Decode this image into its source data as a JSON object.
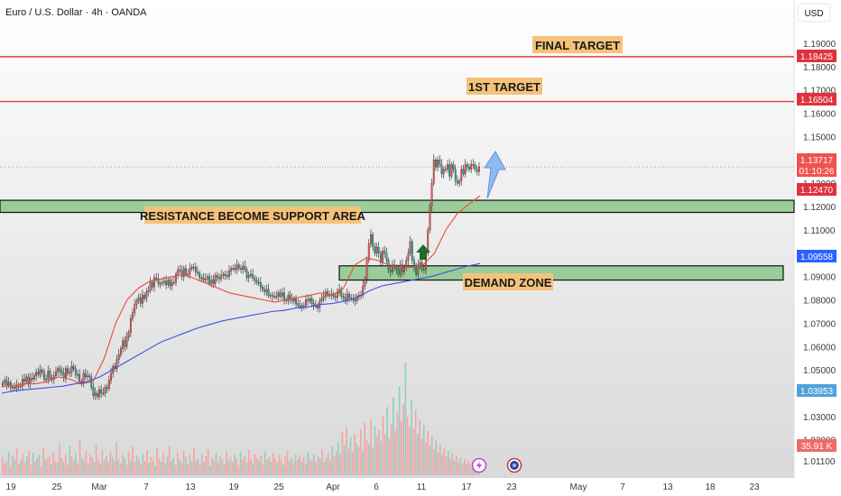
{
  "header": {
    "symbol_title": "Euro / U.S. Dollar · 4h · OANDA",
    "currency": "USD"
  },
  "colors": {
    "bull": "#ef5350",
    "bear": "#26a69a",
    "ema_fast": "#e74c3c",
    "ema_slow": "#3f51e0",
    "zone_fill": "#8fc98f",
    "target_line": "#e23c3c",
    "label_bg": "#f5c27a",
    "arrow_up_blue": "#7fb0f0",
    "arrow_up_green": "#1e6b2a"
  },
  "annotations": {
    "final_target": "FINAL TARGET",
    "first_target": "1ST TARGET",
    "resistance_support": "RESISTANCE BECOME SUPPORT AREA",
    "demand_zone": "DEMAND ZONE"
  },
  "price_badges": {
    "final_target": "1.18425",
    "first_target": "1.16504",
    "last_price": "1.13717",
    "countdown": "01:10:26",
    "ema_fast": "1.12470",
    "ema_slow": "1.09558",
    "volume_ref": "1.03953",
    "volume": "35.91 K"
  },
  "event_icons": [
    "lightning-icon",
    "globe-flag-icon"
  ],
  "chart_data": {
    "type": "candlestick",
    "title": "Euro / U.S. Dollar · 4h · OANDA",
    "ylim": [
      1.005,
      1.197
    ],
    "y_ticks": [
      "1.19000",
      "1.18000",
      "1.17000",
      "1.16000",
      "1.15000",
      "1.14000",
      "1.13000",
      "1.12000",
      "1.11000",
      "1.10000",
      "1.09000",
      "1.08000",
      "1.07000",
      "1.06000",
      "1.05000",
      "1.04000",
      "1.03000",
      "1.02000",
      "1.01100"
    ],
    "x_ticks": [
      "19",
      "25",
      "Mar",
      "7",
      "13",
      "19",
      "25",
      "Apr",
      "6",
      "11",
      "17",
      "23",
      "May",
      "7",
      "13",
      "18",
      "23"
    ],
    "levels": {
      "final_target": 1.18425,
      "first_target": 1.16504
    },
    "zones": {
      "resistance_support": [
        1.1175,
        1.1227
      ],
      "demand": [
        1.0885,
        1.0946
      ]
    },
    "series": [
      {
        "name": "",
        "kind": "price_close",
        "values": [
          1.0445,
          1.0455,
          1.0435,
          1.0445,
          1.0425,
          1.0425,
          1.042,
          1.0435,
          1.043,
          1.043,
          1.046,
          1.045,
          1.047,
          1.044,
          1.0465,
          1.046,
          1.0475,
          1.049,
          1.048,
          1.05,
          1.049,
          1.046,
          1.046,
          1.0495,
          1.0465,
          1.046,
          1.0475,
          1.049,
          1.0505,
          1.0495,
          1.0485,
          1.0465,
          1.0505,
          1.0485,
          1.049,
          1.0515,
          1.0505,
          1.048,
          1.048,
          1.045,
          1.0445,
          1.0485,
          1.047,
          1.0475,
          1.047,
          1.0425,
          1.039,
          1.04,
          1.0385,
          1.0415,
          1.04,
          1.04,
          1.0425,
          1.042,
          1.0455,
          1.0485,
          1.0515,
          1.0505,
          1.0545,
          1.0565,
          1.059,
          1.0625,
          1.06,
          1.064,
          1.066,
          1.072,
          1.0745,
          1.078,
          1.0795,
          1.081,
          1.0785,
          1.082,
          1.0805,
          1.0835,
          1.084,
          1.0875,
          1.0855,
          1.0895,
          1.089,
          1.087,
          1.087,
          1.0875,
          1.088,
          1.0865,
          1.0885,
          1.086,
          1.0875,
          1.0875,
          1.091,
          1.093,
          1.0925,
          1.09,
          1.0935,
          1.091,
          1.091,
          1.0935,
          1.094,
          1.094,
          1.092,
          1.0915,
          1.0895,
          1.0895,
          1.0885,
          1.089,
          1.09,
          1.087,
          1.0885,
          1.087,
          1.0905,
          1.0895,
          1.089,
          1.0905,
          1.091,
          1.0905,
          1.09,
          1.0925,
          1.0935,
          1.0935,
          1.093,
          1.095,
          1.0935,
          1.093,
          1.0945,
          1.093,
          1.0895,
          1.0905,
          1.091,
          1.0895,
          1.0885,
          1.0875,
          1.0875,
          1.0855,
          1.0845,
          1.0835,
          1.0845,
          1.082,
          1.082,
          1.0815,
          1.0815,
          1.0815,
          1.083,
          1.0815,
          1.083,
          1.08,
          1.0795,
          1.082,
          1.0805,
          1.0795,
          1.0805,
          1.0785,
          1.0775,
          1.0775,
          1.077,
          1.0775,
          1.08,
          1.0795,
          1.0805,
          1.0785,
          1.0775,
          1.0775,
          1.0765,
          1.0795,
          1.0805,
          1.0815,
          1.0835,
          1.082,
          1.082,
          1.0825,
          1.0815,
          1.081,
          1.083,
          1.0845,
          1.0815,
          1.081,
          1.0795,
          1.0825,
          1.081,
          1.0805,
          1.08,
          1.0795,
          1.0815,
          1.082,
          1.082,
          1.086,
          1.089,
          1.097,
          1.104,
          1.108,
          1.103,
          1.1,
          1.1025,
          1.1,
          1.096,
          1.101,
          1.1,
          1.097,
          1.093,
          1.092,
          1.095,
          1.094,
          1.093,
          1.091,
          1.095,
          1.092,
          1.094,
          1.097,
          1.1,
          1.105,
          1.097,
          1.094,
          1.091,
          1.095,
          1.096,
          1.093,
          1.093,
          1.1,
          1.11,
          1.12,
          1.13,
          1.14,
          1.137,
          1.14,
          1.138,
          1.134,
          1.136,
          1.136,
          1.138,
          1.133,
          1.138,
          1.136,
          1.131,
          1.13,
          1.131,
          1.136,
          1.134,
          1.138,
          1.137,
          1.136,
          1.138,
          1.138,
          1.136,
          1.135,
          1.137
        ]
      },
      {
        "name": "",
        "kind": "ema_fast",
        "values": [
          1.043,
          1.043,
          1.044,
          1.044,
          1.045,
          1.047,
          1.046,
          1.044,
          1.045,
          1.055,
          1.07,
          1.08,
          1.085,
          1.088,
          1.089,
          1.09,
          1.091,
          1.089,
          1.087,
          1.085,
          1.083,
          1.082,
          1.081,
          1.08,
          1.079,
          1.08,
          1.081,
          1.082,
          1.083,
          1.082,
          1.085,
          1.095,
          1.098,
          1.097,
          1.095,
          1.094,
          1.094,
          1.095,
          1.1,
          1.11,
          1.117,
          1.121,
          1.1247
        ]
      },
      {
        "name": "",
        "kind": "ema_slow",
        "values": [
          1.04,
          1.041,
          1.0415,
          1.042,
          1.0425,
          1.043,
          1.044,
          1.045,
          1.047,
          1.05,
          1.053,
          1.056,
          1.059,
          1.062,
          1.064,
          1.066,
          1.068,
          1.0695,
          1.071,
          1.072,
          1.073,
          1.074,
          1.075,
          1.0755,
          1.0765,
          1.077,
          1.078,
          1.0785,
          1.0795,
          1.081,
          1.084,
          1.086,
          1.087,
          1.088,
          1.089,
          1.09,
          1.0915,
          1.093,
          1.0945,
          1.0956
        ]
      },
      {
        "name": "",
        "kind": "volume",
        "values": [
          22,
          15,
          18,
          30,
          12,
          25,
          20,
          34,
          14,
          19,
          27,
          16,
          24,
          31,
          13,
          28,
          17,
          22,
          26,
          11,
          35,
          19,
          21,
          25,
          14,
          29,
          18,
          16,
          40,
          22,
          17,
          26,
          13,
          37,
          24,
          19,
          28,
          15,
          45,
          22,
          18,
          31,
          14,
          26,
          23,
          17,
          38,
          21,
          14,
          33,
          19,
          24,
          16,
          29,
          23,
          18,
          41,
          20,
          15,
          26,
          22,
          13,
          30,
          19,
          36,
          17,
          25,
          21,
          14,
          27,
          18,
          32,
          16,
          23,
          19,
          12,
          34,
          21,
          17,
          28,
          15,
          24,
          37,
          18,
          22,
          13,
          29,
          20,
          16,
          31,
          23,
          14,
          26,
          18,
          35,
          19,
          21,
          15,
          27,
          17,
          24,
          33,
          12,
          22,
          19,
          28,
          16,
          25,
          20,
          14,
          30,
          18,
          23,
          17,
          26,
          21,
          13,
          29,
          19,
          24,
          16,
          32,
          20,
          15,
          27,
          22,
          18,
          25,
          14,
          30,
          19,
          23,
          17,
          28,
          21,
          16,
          26,
          20,
          13,
          24,
          31,
          18,
          22,
          15,
          27,
          19,
          25,
          17,
          23,
          14,
          29,
          20,
          18,
          26,
          16,
          24,
          21,
          33,
          17,
          22,
          28,
          19,
          36,
          24,
          30,
          42,
          27,
          55,
          38,
          61,
          33,
          48,
          29,
          52,
          40,
          36,
          58,
          31,
          66,
          44,
          39,
          71,
          35,
          62,
          49,
          57,
          43,
          74,
          51,
          86,
          47,
          64,
          98,
          56,
          79,
          112,
          68,
          90,
          142,
          74,
          61,
          95,
          58,
          83,
          52,
          70,
          46,
          63,
          41,
          56,
          37,
          49,
          33,
          44,
          29,
          39,
          26,
          35,
          24,
          31,
          21,
          28,
          19,
          25,
          17,
          22,
          15,
          20,
          14,
          18,
          13,
          16,
          12,
          15,
          11
        ]
      }
    ]
  }
}
